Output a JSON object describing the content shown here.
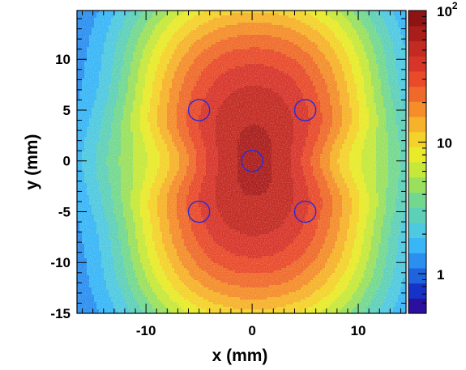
{
  "chart_data": {
    "type": "heatmap",
    "title": "",
    "xlabel": "x (mm)",
    "ylabel": "y (mm)",
    "xlim": [
      -16.5,
      14.5
    ],
    "ylim": [
      -15,
      14.8
    ],
    "x_ticks": [
      -10,
      0,
      10
    ],
    "x_tick_labels": [
      "-10",
      "0",
      "10"
    ],
    "y_ticks": [
      10,
      5,
      0,
      -5,
      -10,
      -15
    ],
    "y_tick_labels": [
      "10",
      "5",
      "0",
      "-5",
      "-10",
      "-15"
    ],
    "z_scale": "log",
    "zlim": [
      0.5,
      100
    ],
    "colorbar_ticks": [
      {
        "value": 100,
        "label_base": "10",
        "label_exp": "2"
      },
      {
        "value": 10,
        "label_base": "10",
        "label_exp": ""
      },
      {
        "value": 1,
        "label_base": "1",
        "label_exp": ""
      }
    ],
    "colorbar_colors": [
      "#2b0f9e",
      "#1633c8",
      "#1e64dc",
      "#2b8ff0",
      "#39b6f6",
      "#4fc9e0",
      "#5fd0b8",
      "#73d88f",
      "#9ae05e",
      "#c6e83a",
      "#e8ea2a",
      "#f4d22a",
      "#f6b22a",
      "#f48d2a",
      "#ef6a2a",
      "#e84a2a",
      "#d7352a",
      "#c22a22",
      "#a91d1b",
      "#8e1414"
    ],
    "circles": [
      {
        "x": -5,
        "y": 5,
        "r": 1
      },
      {
        "x": 5,
        "y": 5,
        "r": 1
      },
      {
        "x": 0,
        "y": 0,
        "r": 1
      },
      {
        "x": -5,
        "y": -5,
        "r": 1
      },
      {
        "x": 5,
        "y": -5,
        "r": 1
      }
    ],
    "circle_color": "#2a2ad8"
  }
}
